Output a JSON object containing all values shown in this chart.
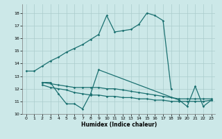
{
  "xlabel": "Humidex (Indice chaleur)",
  "bg_color": "#cce8e8",
  "grid_color": "#aacccc",
  "line_color": "#1a7070",
  "xlim": [
    -0.5,
    23.5
  ],
  "ylim": [
    10,
    18.7
  ],
  "yticks": [
    10,
    11,
    12,
    13,
    14,
    15,
    16,
    17,
    18
  ],
  "xticks": [
    0,
    1,
    2,
    3,
    4,
    5,
    6,
    7,
    8,
    9,
    10,
    11,
    12,
    13,
    14,
    15,
    16,
    17,
    18,
    19,
    20,
    21,
    22,
    23
  ],
  "line1_x": [
    0,
    1,
    2,
    3,
    4,
    5,
    6,
    7,
    8,
    9,
    10,
    11,
    12,
    13,
    14,
    15,
    16,
    17,
    18
  ],
  "line1_y": [
    13.4,
    13.4,
    13.8,
    14.2,
    14.5,
    14.9,
    15.2,
    15.5,
    15.9,
    16.3,
    17.8,
    16.5,
    16.6,
    16.7,
    17.1,
    18.0,
    17.8,
    17.4,
    12.0
  ],
  "line2_x": [
    2,
    3,
    4,
    5,
    6,
    7,
    8,
    9,
    19,
    20,
    21,
    22,
    23
  ],
  "line2_y": [
    12.5,
    12.5,
    11.6,
    10.8,
    10.8,
    10.4,
    11.6,
    13.5,
    11.1,
    10.6,
    12.2,
    10.6,
    11.1
  ],
  "line3_x": [
    2,
    3,
    4,
    5,
    6,
    7,
    8,
    9,
    10,
    11,
    12,
    13,
    14,
    15,
    16,
    17,
    18,
    19,
    20,
    21,
    22,
    23
  ],
  "line3_y": [
    12.5,
    12.4,
    12.3,
    12.2,
    12.1,
    12.1,
    12.1,
    12.1,
    12.0,
    12.0,
    11.9,
    11.8,
    11.7,
    11.6,
    11.5,
    11.4,
    11.3,
    11.2,
    11.2,
    11.2,
    11.2,
    11.2
  ],
  "line4_x": [
    2,
    3,
    4,
    5,
    6,
    7,
    8,
    9,
    10,
    11,
    12,
    13,
    14,
    15,
    16,
    17,
    18,
    19,
    20,
    21,
    22,
    23
  ],
  "line4_y": [
    12.3,
    12.1,
    12.0,
    11.9,
    11.7,
    11.6,
    11.5,
    11.5,
    11.4,
    11.4,
    11.3,
    11.3,
    11.2,
    11.2,
    11.1,
    11.1,
    11.0,
    11.0,
    11.0,
    11.0,
    11.0,
    11.1
  ],
  "ylabel_fontsize": 5,
  "xlabel_fontsize": 5.5,
  "tick_fontsize": 4.5
}
